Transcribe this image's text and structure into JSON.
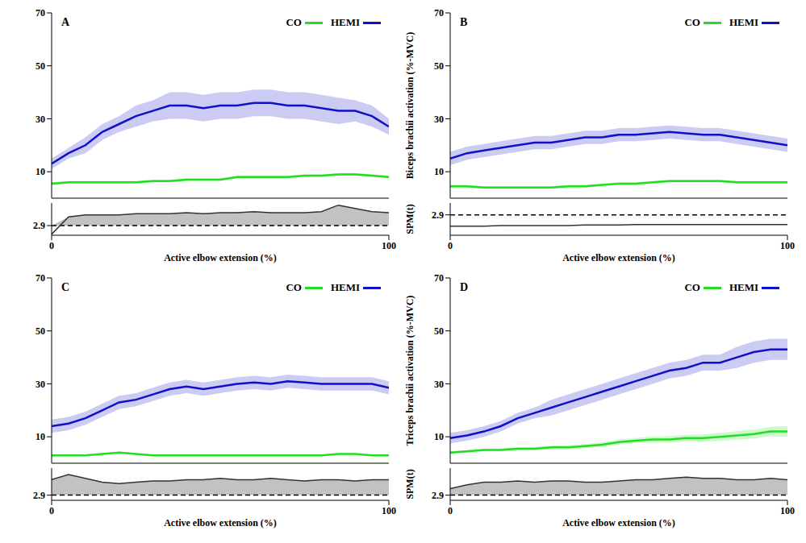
{
  "chart_data": [
    {
      "type": "line",
      "title": "A",
      "legend": "upper right",
      "xlabel": "Active elbow extension (%)",
      "xlim": [
        0,
        100
      ],
      "xticks": [
        0,
        100
      ],
      "ylim": [
        0,
        70
      ],
      "yticks": [
        10,
        30,
        50,
        70
      ],
      "x": [
        0,
        5,
        10,
        15,
        20,
        25,
        30,
        35,
        40,
        45,
        50,
        55,
        60,
        65,
        70,
        75,
        80,
        85,
        90,
        95,
        100
      ],
      "series": [
        {
          "name": "CO",
          "color": "#22dd22",
          "values": [
            5.5,
            6,
            6,
            6,
            6,
            6,
            6.5,
            6.5,
            7,
            7,
            7,
            8,
            8,
            8,
            8,
            8.5,
            8.5,
            9,
            9,
            8.5,
            8
          ],
          "error": [
            0.5,
            0.5,
            0.5,
            0.5,
            0.5,
            0.5,
            0.5,
            0.5,
            0.5,
            0.5,
            0.5,
            0.5,
            0.5,
            0.5,
            0.5,
            0.5,
            0.5,
            0.5,
            0.5,
            0.5,
            0.5
          ]
        },
        {
          "name": "HEMI",
          "color": "#1010c8",
          "values": [
            13,
            17,
            20,
            25,
            28,
            31,
            33,
            35,
            35,
            34,
            35,
            35,
            36,
            36,
            35,
            35,
            34,
            33,
            33,
            31,
            27
          ],
          "error": [
            2,
            2,
            3,
            3,
            3,
            4,
            4,
            5,
            5,
            5,
            5,
            5,
            5,
            5,
            5,
            5,
            5,
            5,
            4,
            4,
            3
          ]
        }
      ],
      "spm": {
        "ylim": [
          2,
          5
        ],
        "yticks": [
          2.9
        ],
        "threshold": 2.9,
        "color": "#333333",
        "values": [
          2.1,
          3.7,
          3.9,
          3.9,
          3.9,
          4.0,
          4.0,
          4.0,
          4.1,
          4.0,
          4.1,
          4.1,
          4.2,
          4.1,
          4.1,
          4.1,
          4.2,
          4.8,
          4.5,
          4.2,
          4.1
        ]
      }
    },
    {
      "type": "line",
      "title": "B",
      "legend": "upper right",
      "ylabel": "Biceps brachii activation (%-MVC)",
      "xlabel": "Active elbow extension (%)",
      "xlim": [
        0,
        100
      ],
      "xticks": [
        0,
        100
      ],
      "ylim": [
        0,
        70
      ],
      "yticks": [
        10,
        30,
        50,
        70
      ],
      "x": [
        0,
        5,
        10,
        15,
        20,
        25,
        30,
        35,
        40,
        45,
        50,
        55,
        60,
        65,
        70,
        75,
        80,
        85,
        90,
        95,
        100
      ],
      "series": [
        {
          "name": "CO",
          "color": "#22dd22",
          "values": [
            4.5,
            4.5,
            4,
            4,
            4,
            4,
            4,
            4.5,
            4.5,
            5,
            5.5,
            5.5,
            6,
            6.5,
            6.5,
            6.5,
            6.5,
            6,
            6,
            6,
            6
          ],
          "error": [
            0.5,
            0.5,
            0.5,
            0.5,
            0.5,
            0.5,
            0.5,
            0.5,
            0.5,
            0.5,
            0.5,
            0.5,
            0.5,
            0.5,
            0.5,
            0.5,
            0.5,
            0.5,
            0.5,
            0.5,
            0.5
          ]
        },
        {
          "name": "HEMI",
          "color": "#1010c8",
          "values": [
            15,
            17,
            18,
            19,
            20,
            21,
            21,
            22,
            23,
            23,
            24,
            24,
            24.5,
            25,
            24.5,
            24,
            24,
            23,
            22,
            21,
            20
          ],
          "error": [
            2.5,
            2.5,
            2.5,
            2.5,
            2.5,
            2.5,
            2.5,
            2.5,
            2.5,
            2.5,
            2.5,
            2.5,
            2.5,
            2.5,
            2.5,
            2.5,
            2.5,
            2.5,
            2.5,
            2.5,
            2.5
          ]
        }
      ],
      "spm": {
        "ylabel": "SPM(t)",
        "ylim": [
          1,
          4
        ],
        "yticks": [
          2.9
        ],
        "threshold": 2.9,
        "color": "#333333",
        "values": [
          1.85,
          1.85,
          1.85,
          1.9,
          1.9,
          1.9,
          1.9,
          1.9,
          1.95,
          1.95,
          1.95,
          2.0,
          2.0,
          2.0,
          2.0,
          2.0,
          2.0,
          2.0,
          2.0,
          2.0,
          2.0
        ]
      }
    },
    {
      "type": "line",
      "title": "C",
      "legend": "upper right",
      "xlabel": "Active elbow extension (%)",
      "xlim": [
        0,
        100
      ],
      "xticks": [
        0,
        100
      ],
      "ylim": [
        0,
        70
      ],
      "yticks": [
        10,
        30,
        50,
        70
      ],
      "x": [
        0,
        5,
        10,
        15,
        20,
        25,
        30,
        35,
        40,
        45,
        50,
        55,
        60,
        65,
        70,
        75,
        80,
        85,
        90,
        95,
        100
      ],
      "series": [
        {
          "name": "CO",
          "color": "#22dd22",
          "values": [
            3,
            3,
            3,
            3.5,
            4,
            3.5,
            3,
            3,
            3,
            3,
            3,
            3,
            3,
            3,
            3,
            3,
            3,
            3.5,
            3.5,
            3,
            3
          ],
          "error": [
            0.3,
            0.3,
            0.3,
            0.3,
            0.3,
            0.3,
            0.3,
            0.3,
            0.3,
            0.3,
            0.3,
            0.3,
            0.3,
            0.3,
            0.3,
            0.3,
            0.3,
            0.3,
            0.3,
            0.3,
            0.3
          ]
        },
        {
          "name": "HEMI",
          "color": "#1010c8",
          "values": [
            14,
            15,
            17,
            20,
            23,
            24,
            26,
            28,
            29,
            28,
            29,
            30,
            30.5,
            30,
            31,
            30.5,
            30,
            30,
            30,
            30,
            28.5
          ],
          "error": [
            2.5,
            2.5,
            2.5,
            2.5,
            2.5,
            2.5,
            2.5,
            2.5,
            2.5,
            2.5,
            2.5,
            2.5,
            2.5,
            2.5,
            2.5,
            2.5,
            2.5,
            2.5,
            2.5,
            2.5,
            2.5
          ]
        }
      ],
      "spm": {
        "ylim": [
          2.5,
          5
        ],
        "yticks": [
          2.9
        ],
        "threshold": 2.9,
        "color": "#333333",
        "values": [
          4.1,
          4.5,
          4.2,
          3.9,
          3.8,
          3.9,
          4.0,
          4.0,
          4.1,
          4.1,
          4.2,
          4.1,
          4.1,
          4.2,
          4.1,
          4.0,
          4.1,
          4.1,
          4.0,
          4.1,
          4.1
        ]
      }
    },
    {
      "type": "line",
      "title": "D",
      "legend": "upper right",
      "ylabel": "Triceps brachii activation (%-MVC)",
      "xlabel": "Active elbow extension (%)",
      "xlim": [
        0,
        100
      ],
      "xticks": [
        0,
        100
      ],
      "ylim": [
        0,
        70
      ],
      "yticks": [
        10,
        30,
        50,
        70
      ],
      "x": [
        0,
        5,
        10,
        15,
        20,
        25,
        30,
        35,
        40,
        45,
        50,
        55,
        60,
        65,
        70,
        75,
        80,
        85,
        90,
        95,
        100
      ],
      "series": [
        {
          "name": "CO",
          "color": "#22dd22",
          "values": [
            4,
            4.5,
            5,
            5,
            5.5,
            5.5,
            6,
            6,
            6.5,
            7,
            8,
            8.5,
            9,
            9,
            9.5,
            9.5,
            10,
            10.5,
            11,
            12,
            12
          ],
          "error": [
            0.5,
            0.5,
            0.5,
            0.6,
            0.6,
            0.7,
            0.7,
            0.8,
            0.8,
            0.9,
            1,
            1,
            1.1,
            1.2,
            1.3,
            1.4,
            1.5,
            1.6,
            1.7,
            1.8,
            2
          ]
        },
        {
          "name": "HEMI",
          "color": "#1010c8",
          "values": [
            9.5,
            10.5,
            12,
            14,
            17,
            19,
            21,
            23,
            25,
            27,
            29,
            31,
            33,
            35,
            36,
            38,
            38,
            40,
            42,
            43,
            43
          ],
          "error": [
            2,
            2,
            2,
            2,
            2,
            2,
            3,
            3,
            3,
            3,
            3,
            3,
            3,
            3,
            3,
            3,
            3,
            4,
            4,
            4,
            4
          ]
        }
      ],
      "spm": {
        "ylabel": "SPM(t)",
        "ylim": [
          2.5,
          5
        ],
        "yticks": [
          2.9
        ],
        "threshold": 2.9,
        "color": "#333333",
        "values": [
          3.4,
          3.7,
          3.9,
          3.9,
          4.0,
          3.9,
          4.0,
          4.0,
          3.9,
          3.9,
          4.0,
          4.1,
          4.1,
          4.2,
          4.3,
          4.2,
          4.2,
          4.1,
          4.1,
          4.2,
          4.1
        ]
      }
    }
  ]
}
